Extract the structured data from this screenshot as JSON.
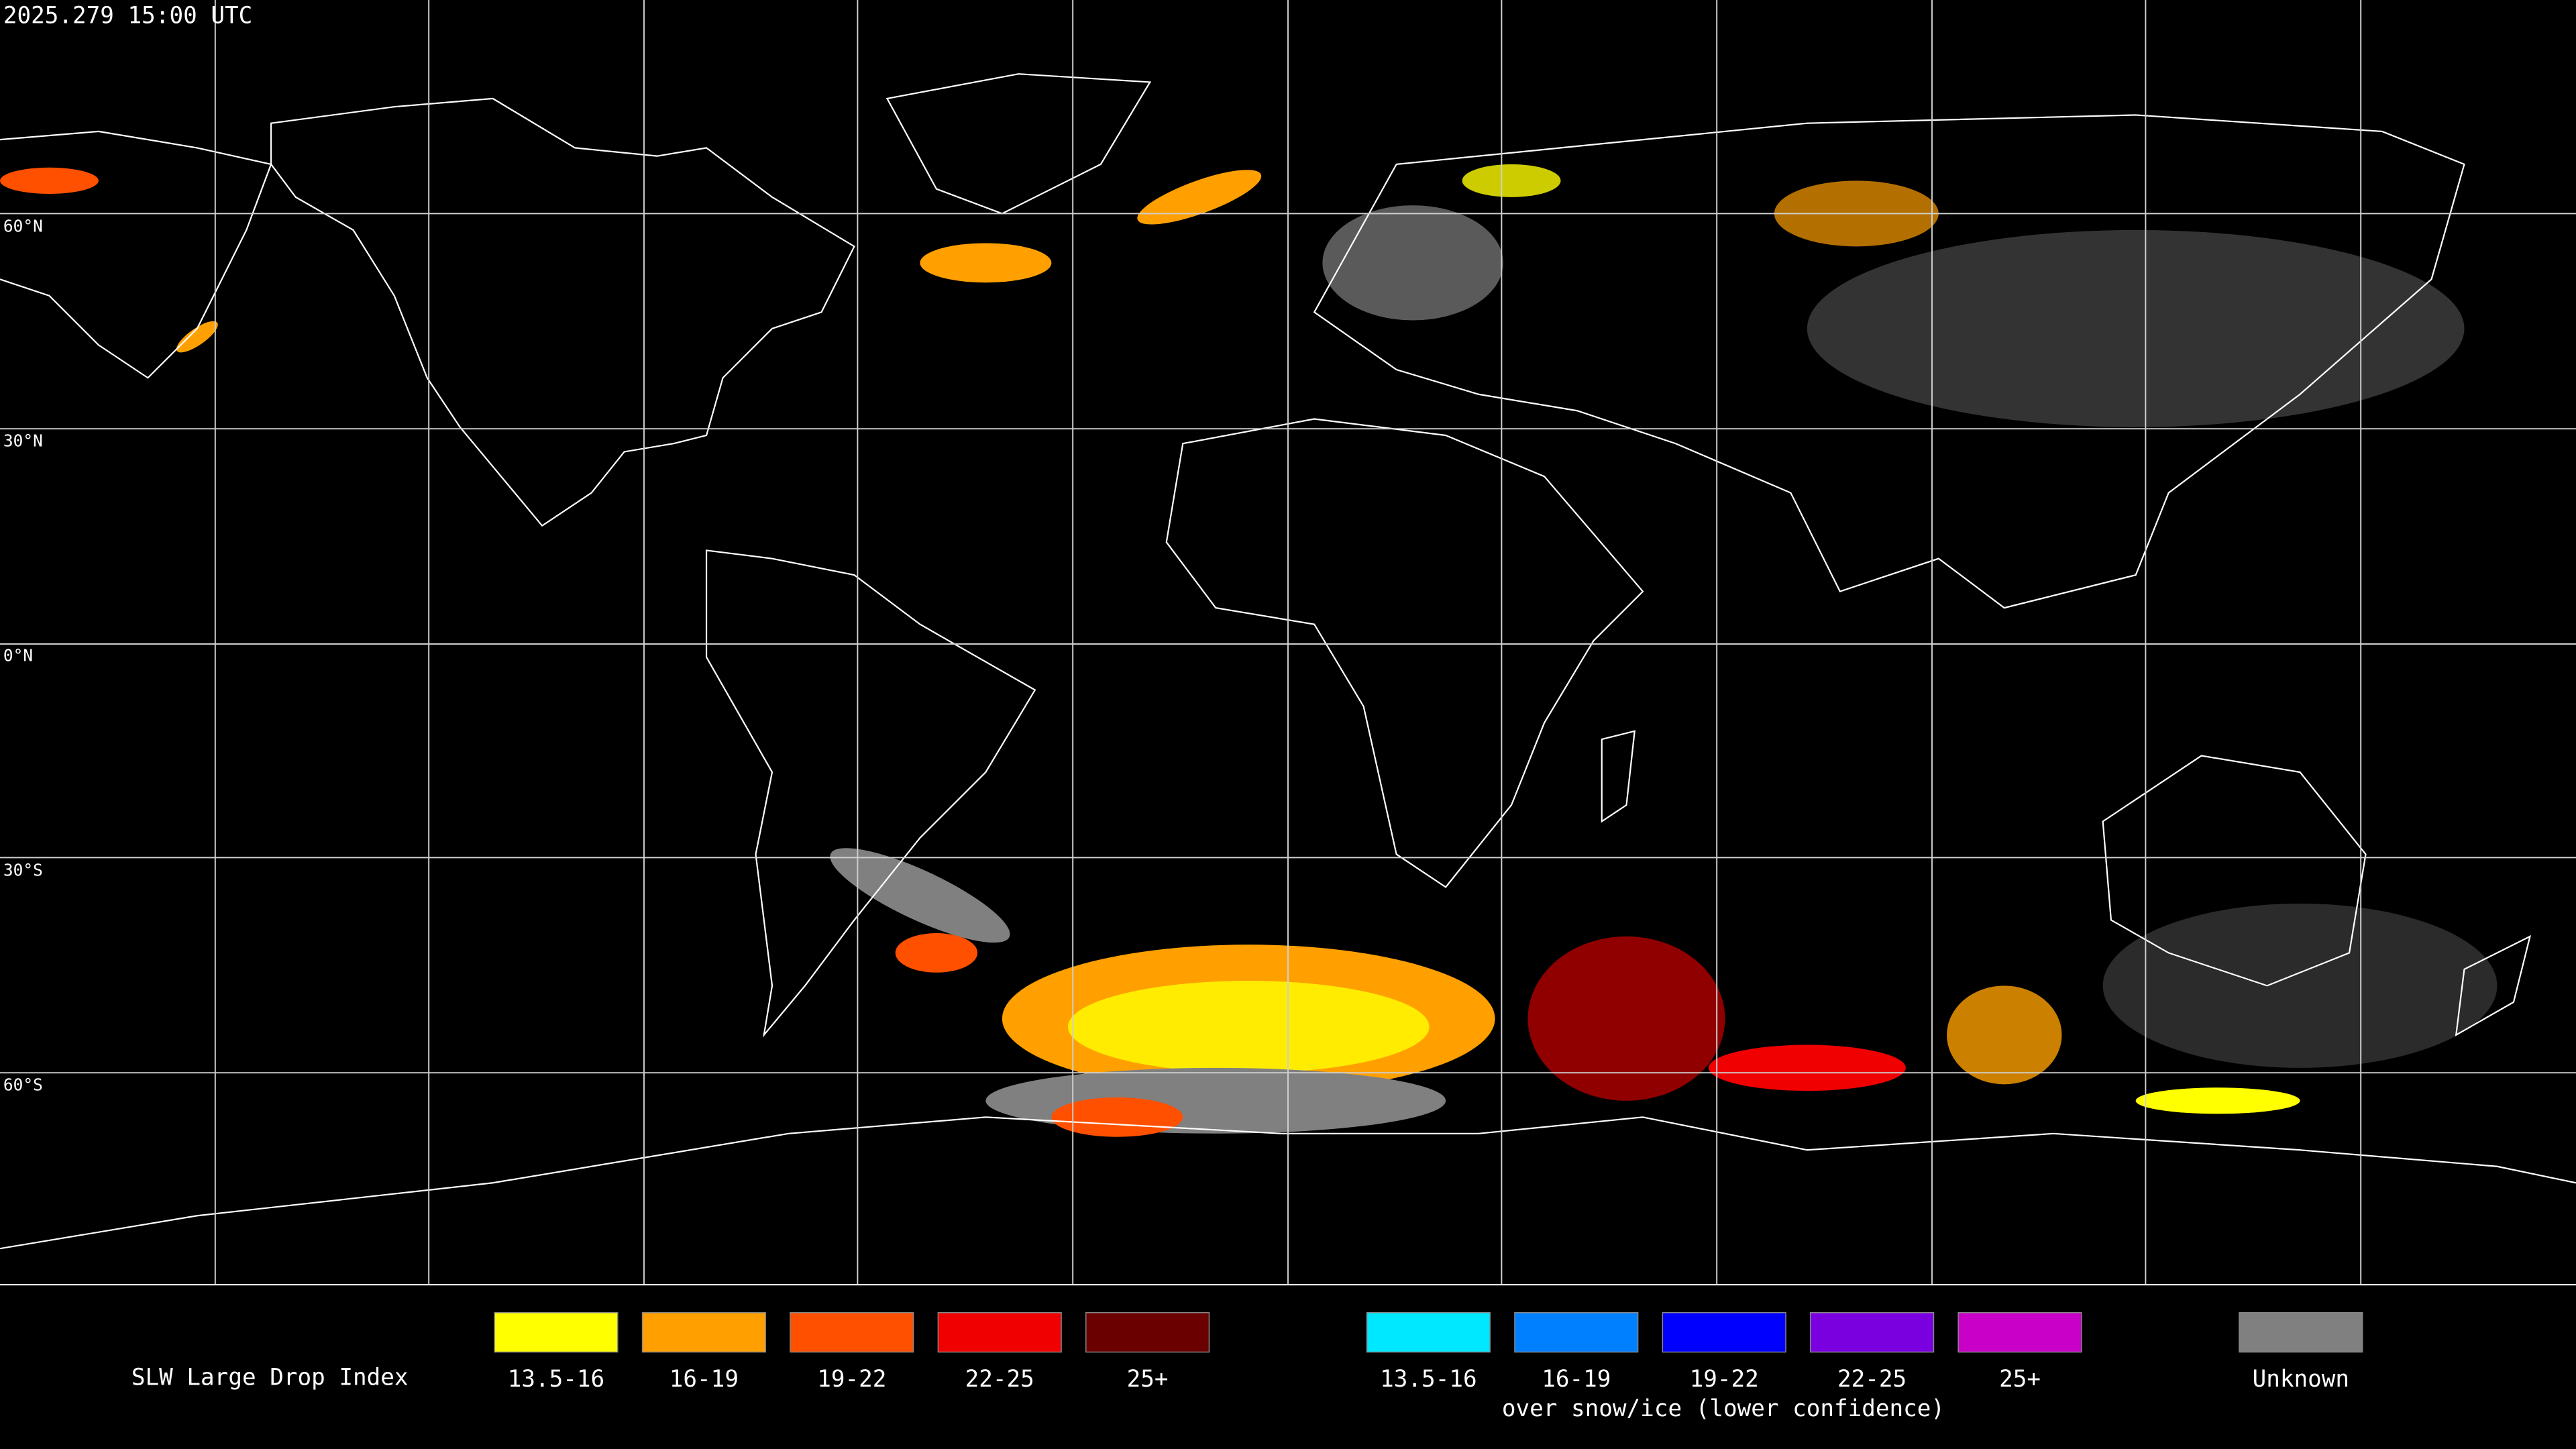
{
  "header": {
    "timestamp": "2025.279 15:00 UTC"
  },
  "map": {
    "latitude_labels": [
      "60°N",
      "30°N",
      "0°N",
      "30°S",
      "60°S"
    ]
  },
  "legend": {
    "title": "SLW Large Drop Index",
    "groups": [
      {
        "items": [
          {
            "label": "13.5-16",
            "color": "#ffff00"
          },
          {
            "label": "16-19",
            "color": "#ffa000"
          },
          {
            "label": "19-22",
            "color": "#ff5000"
          },
          {
            "label": "22-25",
            "color": "#f00000"
          },
          {
            "label": "25+",
            "color": "#6a0000"
          }
        ]
      },
      {
        "items": [
          {
            "label": "13.5-16",
            "color": "#00e8ff"
          },
          {
            "label": "16-19",
            "color": "#0080ff"
          },
          {
            "label": "19-22",
            "color": "#0000ff"
          },
          {
            "label": "22-25",
            "color": "#7a00e0"
          },
          {
            "label": "25+",
            "color": "#c800c8"
          }
        ],
        "caption": "over snow/ice (lower confidence)"
      }
    ],
    "unknown": {
      "label": "Unknown",
      "color": "#808080"
    }
  }
}
